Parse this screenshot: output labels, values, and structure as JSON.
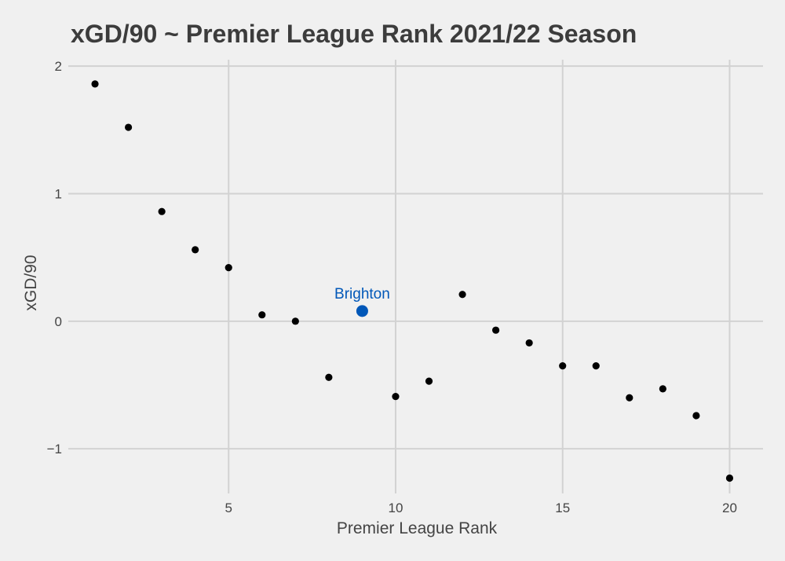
{
  "chart_data": {
    "type": "scatter",
    "title": "xGD/90 ~ Premier League Rank 2021/22 Season",
    "xlabel": "Premier League Rank",
    "ylabel": "xGD/90",
    "xlim": [
      0.2,
      21
    ],
    "ylim": [
      -1.35,
      2.05
    ],
    "xticks": [
      5,
      10,
      15,
      20
    ],
    "yticks": [
      -1,
      0,
      1,
      2
    ],
    "xtick_labels": [
      "5",
      "10",
      "15",
      "20"
    ],
    "ytick_labels": [
      "−1",
      "0",
      "1",
      "2"
    ],
    "grid": true,
    "colors": {
      "background": "#f0f0f0",
      "grid": "#d2d2d2",
      "points": "#000000",
      "highlight": "#0057b8"
    },
    "points": [
      {
        "x": 1,
        "y": 1.86
      },
      {
        "x": 2,
        "y": 1.52
      },
      {
        "x": 3,
        "y": 0.86
      },
      {
        "x": 4,
        "y": 0.56
      },
      {
        "x": 5,
        "y": 0.42
      },
      {
        "x": 6,
        "y": 0.05
      },
      {
        "x": 7,
        "y": 0.0
      },
      {
        "x": 8,
        "y": -0.44
      },
      {
        "x": 9,
        "y": 0.08,
        "highlight": true,
        "label": "Brighton"
      },
      {
        "x": 10,
        "y": -0.59
      },
      {
        "x": 11,
        "y": -0.47
      },
      {
        "x": 12,
        "y": 0.21
      },
      {
        "x": 13,
        "y": -0.07
      },
      {
        "x": 14,
        "y": -0.17
      },
      {
        "x": 15,
        "y": -0.35
      },
      {
        "x": 16,
        "y": -0.35
      },
      {
        "x": 17,
        "y": -0.6
      },
      {
        "x": 18,
        "y": -0.53
      },
      {
        "x": 19,
        "y": -0.74
      },
      {
        "x": 20,
        "y": -1.23
      }
    ]
  }
}
